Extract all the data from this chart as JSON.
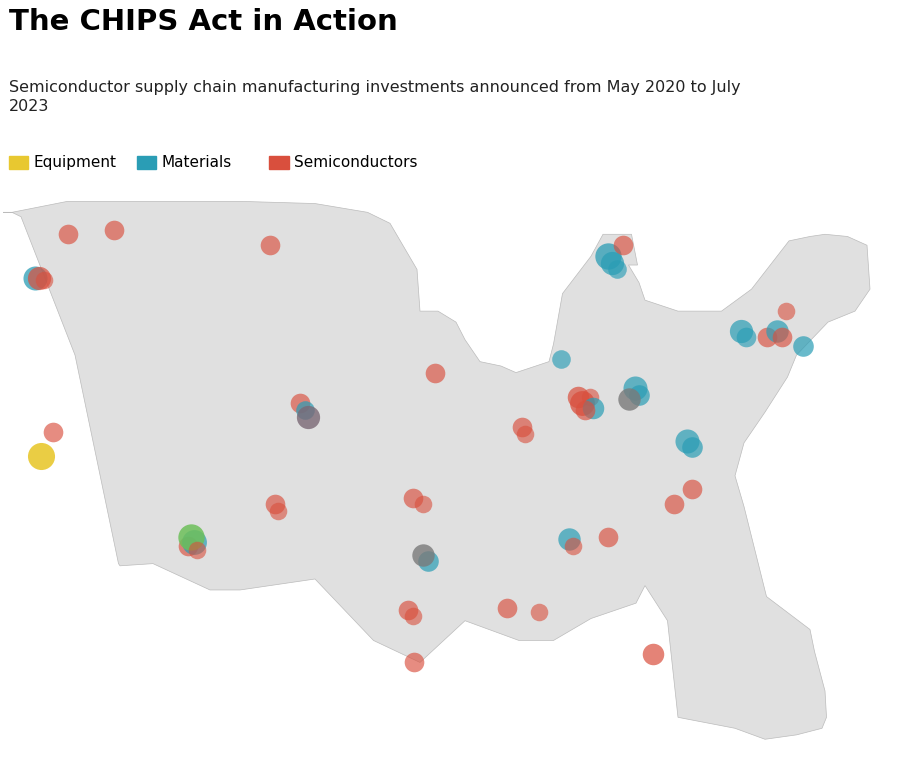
{
  "title": "The CHIPS Act in Action",
  "subtitle": "Semiconductor supply chain manufacturing investments announced from May 2020 to July\n2023",
  "legend_items": [
    "Equipment",
    "Materials",
    "Semiconductors"
  ],
  "legend_colors": [
    "#E8C830",
    "#2A9DB5",
    "#D94F3D"
  ],
  "map_facecolor": "#E0E0E0",
  "map_edgecolor": "#BBBBBB",
  "background_color": "#FFFFFF",
  "dots": [
    {
      "lon": -122.7,
      "lat": 45.5,
      "color": "#2A9DB5",
      "size": 300,
      "alpha": 0.75,
      "zorder": 5
    },
    {
      "lon": -122.4,
      "lat": 45.5,
      "color": "#D94F3D",
      "size": 280,
      "alpha": 0.7,
      "zorder": 6
    },
    {
      "lon": -122.1,
      "lat": 45.4,
      "color": "#D94F3D",
      "size": 160,
      "alpha": 0.6,
      "zorder": 7
    },
    {
      "lon": -120.5,
      "lat": 47.5,
      "color": "#D94F3D",
      "size": 200,
      "alpha": 0.65,
      "zorder": 5
    },
    {
      "lon": -117.4,
      "lat": 47.7,
      "color": "#D94F3D",
      "size": 200,
      "alpha": 0.65,
      "zorder": 5
    },
    {
      "lon": -121.5,
      "lat": 38.5,
      "color": "#D94F3D",
      "size": 200,
      "alpha": 0.65,
      "zorder": 5
    },
    {
      "lon": -122.3,
      "lat": 37.4,
      "color": "#E8C830",
      "size": 380,
      "alpha": 0.9,
      "zorder": 5
    },
    {
      "lon": -107.0,
      "lat": 47.0,
      "color": "#D94F3D",
      "size": 200,
      "alpha": 0.65,
      "zorder": 5
    },
    {
      "lon": -105.0,
      "lat": 39.8,
      "color": "#D94F3D",
      "size": 200,
      "alpha": 0.65,
      "zorder": 5
    },
    {
      "lon": -104.7,
      "lat": 39.5,
      "color": "#2A9DB5",
      "size": 180,
      "alpha": 0.7,
      "zorder": 6
    },
    {
      "lon": -104.5,
      "lat": 39.2,
      "color": "#7A6875",
      "size": 280,
      "alpha": 0.8,
      "zorder": 7
    },
    {
      "lon": -97.5,
      "lat": 35.5,
      "color": "#D94F3D",
      "size": 200,
      "alpha": 0.65,
      "zorder": 5
    },
    {
      "lon": -96.8,
      "lat": 35.2,
      "color": "#D94F3D",
      "size": 160,
      "alpha": 0.6,
      "zorder": 6
    },
    {
      "lon": -96.0,
      "lat": 41.2,
      "color": "#D94F3D",
      "size": 200,
      "alpha": 0.65,
      "zorder": 5
    },
    {
      "lon": -87.6,
      "lat": 41.8,
      "color": "#2A9DB5",
      "size": 180,
      "alpha": 0.65,
      "zorder": 5
    },
    {
      "lon": -86.5,
      "lat": 40.1,
      "color": "#D94F3D",
      "size": 240,
      "alpha": 0.7,
      "zorder": 5
    },
    {
      "lon": -86.2,
      "lat": 39.8,
      "color": "#D94F3D",
      "size": 320,
      "alpha": 0.75,
      "zorder": 6
    },
    {
      "lon": -86.0,
      "lat": 39.5,
      "color": "#D94F3D",
      "size": 200,
      "alpha": 0.65,
      "zorder": 7
    },
    {
      "lon": -85.7,
      "lat": 40.1,
      "color": "#D94F3D",
      "size": 160,
      "alpha": 0.6,
      "zorder": 5
    },
    {
      "lon": -85.5,
      "lat": 39.6,
      "color": "#2A9DB5",
      "size": 240,
      "alpha": 0.7,
      "zorder": 6
    },
    {
      "lon": -83.1,
      "lat": 40.0,
      "color": "#7A7A7A",
      "size": 260,
      "alpha": 0.8,
      "zorder": 7
    },
    {
      "lon": -82.7,
      "lat": 40.5,
      "color": "#2A9DB5",
      "size": 300,
      "alpha": 0.7,
      "zorder": 5
    },
    {
      "lon": -82.4,
      "lat": 40.2,
      "color": "#2A9DB5",
      "size": 220,
      "alpha": 0.7,
      "zorder": 6
    },
    {
      "lon": -84.5,
      "lat": 33.7,
      "color": "#D94F3D",
      "size": 200,
      "alpha": 0.65,
      "zorder": 5
    },
    {
      "lon": -87.1,
      "lat": 33.6,
      "color": "#2A9DB5",
      "size": 260,
      "alpha": 0.7,
      "zorder": 5
    },
    {
      "lon": -86.8,
      "lat": 33.3,
      "color": "#D94F3D",
      "size": 160,
      "alpha": 0.6,
      "zorder": 6
    },
    {
      "lon": -80.1,
      "lat": 35.2,
      "color": "#D94F3D",
      "size": 200,
      "alpha": 0.65,
      "zorder": 5
    },
    {
      "lon": -78.9,
      "lat": 35.9,
      "color": "#D94F3D",
      "size": 200,
      "alpha": 0.65,
      "zorder": 5
    },
    {
      "lon": -79.2,
      "lat": 38.1,
      "color": "#2A9DB5",
      "size": 300,
      "alpha": 0.7,
      "zorder": 5
    },
    {
      "lon": -78.9,
      "lat": 37.8,
      "color": "#2A9DB5",
      "size": 220,
      "alpha": 0.7,
      "zorder": 6
    },
    {
      "lon": -84.5,
      "lat": 46.5,
      "color": "#2A9DB5",
      "size": 360,
      "alpha": 0.75,
      "zorder": 5
    },
    {
      "lon": -84.2,
      "lat": 46.2,
      "color": "#2A9DB5",
      "size": 280,
      "alpha": 0.7,
      "zorder": 6
    },
    {
      "lon": -83.9,
      "lat": 45.9,
      "color": "#2A9DB5",
      "size": 180,
      "alpha": 0.65,
      "zorder": 7
    },
    {
      "lon": -83.5,
      "lat": 47.0,
      "color": "#D94F3D",
      "size": 200,
      "alpha": 0.65,
      "zorder": 5
    },
    {
      "lon": -73.9,
      "lat": 42.8,
      "color": "#D94F3D",
      "size": 200,
      "alpha": 0.65,
      "zorder": 5
    },
    {
      "lon": -73.2,
      "lat": 43.1,
      "color": "#2A9DB5",
      "size": 260,
      "alpha": 0.7,
      "zorder": 5
    },
    {
      "lon": -72.9,
      "lat": 42.8,
      "color": "#D94F3D",
      "size": 200,
      "alpha": 0.65,
      "zorder": 6
    },
    {
      "lon": -72.6,
      "lat": 44.0,
      "color": "#D94F3D",
      "size": 160,
      "alpha": 0.6,
      "zorder": 5
    },
    {
      "lon": -71.5,
      "lat": 42.4,
      "color": "#2A9DB5",
      "size": 220,
      "alpha": 0.7,
      "zorder": 5
    },
    {
      "lon": -75.6,
      "lat": 43.1,
      "color": "#2A9DB5",
      "size": 280,
      "alpha": 0.7,
      "zorder": 5
    },
    {
      "lon": -75.3,
      "lat": 42.8,
      "color": "#2A9DB5",
      "size": 200,
      "alpha": 0.65,
      "zorder": 6
    },
    {
      "lon": -90.2,
      "lat": 38.7,
      "color": "#D94F3D",
      "size": 200,
      "alpha": 0.65,
      "zorder": 5
    },
    {
      "lon": -90.0,
      "lat": 38.4,
      "color": "#D94F3D",
      "size": 160,
      "alpha": 0.6,
      "zorder": 6
    },
    {
      "lon": -97.8,
      "lat": 30.4,
      "color": "#D94F3D",
      "size": 200,
      "alpha": 0.65,
      "zorder": 5
    },
    {
      "lon": -97.5,
      "lat": 30.1,
      "color": "#D94F3D",
      "size": 160,
      "alpha": 0.6,
      "zorder": 6
    },
    {
      "lon": -96.8,
      "lat": 32.9,
      "color": "#7A7A7A",
      "size": 260,
      "alpha": 0.8,
      "zorder": 7
    },
    {
      "lon": -96.5,
      "lat": 32.6,
      "color": "#2A9DB5",
      "size": 220,
      "alpha": 0.7,
      "zorder": 6
    },
    {
      "lon": -97.4,
      "lat": 28.0,
      "color": "#D94F3D",
      "size": 200,
      "alpha": 0.65,
      "zorder": 5
    },
    {
      "lon": -81.5,
      "lat": 28.4,
      "color": "#D94F3D",
      "size": 240,
      "alpha": 0.7,
      "zorder": 5
    },
    {
      "lon": -112.1,
      "lat": 33.5,
      "color": "#2A9DB5",
      "size": 320,
      "alpha": 0.7,
      "zorder": 6
    },
    {
      "lon": -112.3,
      "lat": 33.7,
      "color": "#6DBF5A",
      "size": 360,
      "alpha": 0.85,
      "zorder": 7
    },
    {
      "lon": -112.5,
      "lat": 33.3,
      "color": "#D94F3D",
      "size": 200,
      "alpha": 0.65,
      "zorder": 5
    },
    {
      "lon": -111.9,
      "lat": 33.1,
      "color": "#D94F3D",
      "size": 160,
      "alpha": 0.6,
      "zorder": 8
    },
    {
      "lon": -106.7,
      "lat": 35.2,
      "color": "#D94F3D",
      "size": 200,
      "alpha": 0.65,
      "zorder": 5
    },
    {
      "lon": -106.5,
      "lat": 34.9,
      "color": "#D94F3D",
      "size": 160,
      "alpha": 0.6,
      "zorder": 6
    },
    {
      "lon": -91.2,
      "lat": 30.5,
      "color": "#D94F3D",
      "size": 200,
      "alpha": 0.65,
      "zorder": 5
    },
    {
      "lon": -89.1,
      "lat": 30.3,
      "color": "#D94F3D",
      "size": 160,
      "alpha": 0.6,
      "zorder": 5
    }
  ]
}
